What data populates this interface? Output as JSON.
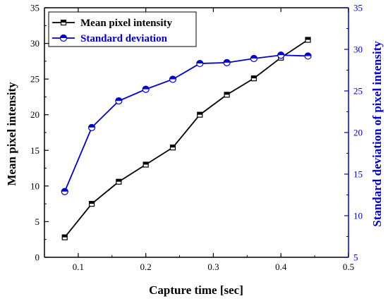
{
  "chart_data": {
    "type": "line",
    "title": "",
    "xlabel": "Capture time [sec]",
    "ylabel_left": "Mean pixel intensity",
    "ylabel_right": "Standard deviation of pixel intensity",
    "xlim": [
      0.05,
      0.5
    ],
    "ylim_left": [
      0,
      35
    ],
    "ylim_right": [
      5,
      35
    ],
    "x_ticks": [
      0.1,
      0.2,
      0.3,
      0.4,
      0.5
    ],
    "y_left_ticks": [
      0,
      5,
      10,
      15,
      20,
      25,
      30,
      35
    ],
    "y_right_ticks": [
      5,
      10,
      15,
      20,
      25,
      30,
      35
    ],
    "legend_position": "top-left",
    "grid": false,
    "x": [
      0.08,
      0.12,
      0.16,
      0.2,
      0.24,
      0.28,
      0.32,
      0.36,
      0.4,
      0.44
    ],
    "series": [
      {
        "name": "Mean pixel intensity",
        "axis": "left",
        "color": "#000000",
        "marker": "half-filled-square",
        "values": [
          2.8,
          7.5,
          10.6,
          13.0,
          15.4,
          20.0,
          22.8,
          25.1,
          28.0,
          30.5
        ]
      },
      {
        "name": "Standard deviation",
        "axis": "right",
        "color": "#0000cc",
        "marker": "half-filled-circle",
        "values": [
          12.9,
          20.6,
          23.8,
          25.2,
          26.4,
          28.3,
          28.4,
          28.9,
          29.3,
          29.2
        ]
      }
    ]
  }
}
